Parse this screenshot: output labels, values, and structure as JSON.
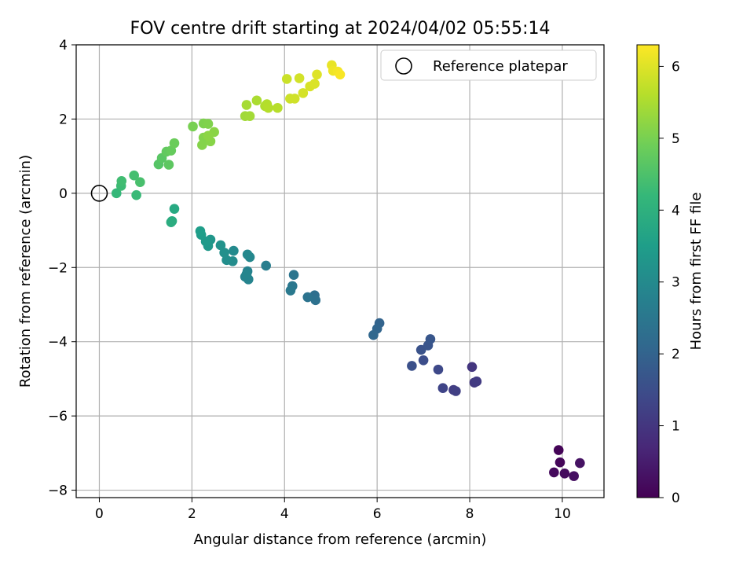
{
  "chart_data": {
    "type": "scatter",
    "title": "FOV centre drift starting at 2024/04/02 05:55:14",
    "xlabel": "Angular distance from reference (arcmin)",
    "ylabel": "Rotation from reference (arcmin)",
    "xlim": [
      -0.5,
      10.9
    ],
    "ylim": [
      -8.2,
      4.0
    ],
    "xticks": [
      0,
      2,
      4,
      6,
      8,
      10
    ],
    "yticks": [
      -8,
      -6,
      -4,
      -2,
      0,
      2,
      4
    ],
    "grid": true,
    "legend": {
      "placement": "top-right",
      "entries": [
        "Reference platepar"
      ]
    },
    "reference_point": {
      "x": 0,
      "y": 0,
      "marker": "open-circle"
    },
    "colorbar": {
      "label": "Hours from first FF file",
      "range": [
        0,
        6.3
      ],
      "ticks": [
        0,
        1,
        2,
        3,
        4,
        5,
        6
      ],
      "colormap": "viridis",
      "colors": [
        "#440154",
        "#482878",
        "#3e4989",
        "#31688e",
        "#26828e",
        "#1f9e89",
        "#35b779",
        "#6ece58",
        "#b5de2b",
        "#fde725"
      ]
    },
    "points": [
      {
        "x": 9.92,
        "y": -6.92,
        "c": 0.05
      },
      {
        "x": 9.95,
        "y": -7.25,
        "c": 0.1
      },
      {
        "x": 9.82,
        "y": -7.52,
        "c": 0.15
      },
      {
        "x": 10.05,
        "y": -7.55,
        "c": 0.2
      },
      {
        "x": 10.25,
        "y": -7.62,
        "c": 0.25
      },
      {
        "x": 10.38,
        "y": -7.27,
        "c": 0.3
      },
      {
        "x": 8.05,
        "y": -4.68,
        "c": 1.0
      },
      {
        "x": 8.1,
        "y": -5.1,
        "c": 1.05
      },
      {
        "x": 8.15,
        "y": -5.07,
        "c": 1.1
      },
      {
        "x": 7.65,
        "y": -5.3,
        "c": 1.15
      },
      {
        "x": 7.7,
        "y": -5.33,
        "c": 1.2
      },
      {
        "x": 7.42,
        "y": -5.25,
        "c": 1.3
      },
      {
        "x": 7.32,
        "y": -4.75,
        "c": 1.4
      },
      {
        "x": 7.0,
        "y": -4.5,
        "c": 1.5
      },
      {
        "x": 6.75,
        "y": -4.65,
        "c": 1.55
      },
      {
        "x": 6.95,
        "y": -4.22,
        "c": 1.6
      },
      {
        "x": 7.1,
        "y": -4.1,
        "c": 1.65
      },
      {
        "x": 7.15,
        "y": -3.93,
        "c": 1.7
      },
      {
        "x": 6.05,
        "y": -3.5,
        "c": 2.0
      },
      {
        "x": 6.0,
        "y": -3.65,
        "c": 2.05
      },
      {
        "x": 5.92,
        "y": -3.82,
        "c": 2.1
      },
      {
        "x": 4.65,
        "y": -2.75,
        "c": 2.3
      },
      {
        "x": 4.67,
        "y": -2.88,
        "c": 2.35
      },
      {
        "x": 4.5,
        "y": -2.8,
        "c": 2.4
      },
      {
        "x": 4.2,
        "y": -2.2,
        "c": 2.45
      },
      {
        "x": 4.17,
        "y": -2.5,
        "c": 2.5
      },
      {
        "x": 4.13,
        "y": -2.62,
        "c": 2.55
      },
      {
        "x": 3.6,
        "y": -1.95,
        "c": 2.7
      },
      {
        "x": 3.2,
        "y": -2.1,
        "c": 2.8
      },
      {
        "x": 3.15,
        "y": -2.25,
        "c": 2.82
      },
      {
        "x": 3.22,
        "y": -2.32,
        "c": 2.85
      },
      {
        "x": 3.18,
        "y": -2.18,
        "c": 2.88
      },
      {
        "x": 3.25,
        "y": -1.72,
        "c": 2.92
      },
      {
        "x": 3.2,
        "y": -1.65,
        "c": 2.95
      },
      {
        "x": 2.9,
        "y": -1.55,
        "c": 3.0
      },
      {
        "x": 2.88,
        "y": -1.83,
        "c": 3.05
      },
      {
        "x": 2.75,
        "y": -1.8,
        "c": 3.1
      },
      {
        "x": 2.7,
        "y": -1.6,
        "c": 3.15
      },
      {
        "x": 2.62,
        "y": -1.4,
        "c": 3.2
      },
      {
        "x": 2.4,
        "y": -1.25,
        "c": 3.3
      },
      {
        "x": 2.35,
        "y": -1.42,
        "c": 3.35
      },
      {
        "x": 2.3,
        "y": -1.3,
        "c": 3.4
      },
      {
        "x": 2.2,
        "y": -1.12,
        "c": 3.45
      },
      {
        "x": 2.18,
        "y": -1.02,
        "c": 3.5
      },
      {
        "x": 1.62,
        "y": -0.42,
        "c": 3.8
      },
      {
        "x": 1.57,
        "y": -0.75,
        "c": 3.85
      },
      {
        "x": 1.55,
        "y": -0.78,
        "c": 3.9
      },
      {
        "x": 0.37,
        "y": 0.0,
        "c": 4.2
      },
      {
        "x": 0.8,
        "y": -0.05,
        "c": 4.25
      },
      {
        "x": 0.47,
        "y": 0.2,
        "c": 4.3
      },
      {
        "x": 0.48,
        "y": 0.33,
        "c": 4.35
      },
      {
        "x": 0.75,
        "y": 0.48,
        "c": 4.4
      },
      {
        "x": 0.88,
        "y": 0.3,
        "c": 4.45
      },
      {
        "x": 1.28,
        "y": 0.78,
        "c": 4.6
      },
      {
        "x": 1.35,
        "y": 0.95,
        "c": 4.65
      },
      {
        "x": 1.5,
        "y": 0.77,
        "c": 4.7
      },
      {
        "x": 1.45,
        "y": 1.12,
        "c": 4.75
      },
      {
        "x": 1.55,
        "y": 1.15,
        "c": 4.8
      },
      {
        "x": 1.62,
        "y": 1.35,
        "c": 4.85
      },
      {
        "x": 2.02,
        "y": 1.8,
        "c": 5.0
      },
      {
        "x": 2.25,
        "y": 1.88,
        "c": 5.05
      },
      {
        "x": 2.35,
        "y": 1.87,
        "c": 5.08
      },
      {
        "x": 2.25,
        "y": 1.5,
        "c": 5.1
      },
      {
        "x": 2.22,
        "y": 1.3,
        "c": 5.12
      },
      {
        "x": 2.4,
        "y": 1.4,
        "c": 5.15
      },
      {
        "x": 2.48,
        "y": 1.65,
        "c": 5.18
      },
      {
        "x": 2.35,
        "y": 1.55,
        "c": 5.2
      },
      {
        "x": 3.15,
        "y": 2.08,
        "c": 5.4
      },
      {
        "x": 3.25,
        "y": 2.08,
        "c": 5.42
      },
      {
        "x": 3.18,
        "y": 2.38,
        "c": 5.45
      },
      {
        "x": 3.4,
        "y": 2.5,
        "c": 5.5
      },
      {
        "x": 3.58,
        "y": 2.35,
        "c": 5.55
      },
      {
        "x": 3.62,
        "y": 2.4,
        "c": 5.58
      },
      {
        "x": 3.65,
        "y": 2.3,
        "c": 5.6
      },
      {
        "x": 3.85,
        "y": 2.3,
        "c": 5.62
      },
      {
        "x": 4.05,
        "y": 3.08,
        "c": 5.8
      },
      {
        "x": 4.12,
        "y": 2.55,
        "c": 5.82
      },
      {
        "x": 4.22,
        "y": 2.55,
        "c": 5.85
      },
      {
        "x": 4.32,
        "y": 3.1,
        "c": 5.88
      },
      {
        "x": 4.4,
        "y": 2.7,
        "c": 5.9
      },
      {
        "x": 4.55,
        "y": 2.88,
        "c": 5.93
      },
      {
        "x": 4.65,
        "y": 2.95,
        "c": 5.96
      },
      {
        "x": 4.7,
        "y": 3.2,
        "c": 6.0
      },
      {
        "x": 5.02,
        "y": 3.45,
        "c": 6.1
      },
      {
        "x": 5.05,
        "y": 3.3,
        "c": 6.15
      },
      {
        "x": 5.15,
        "y": 3.28,
        "c": 6.2
      },
      {
        "x": 5.2,
        "y": 3.2,
        "c": 6.25
      }
    ]
  }
}
